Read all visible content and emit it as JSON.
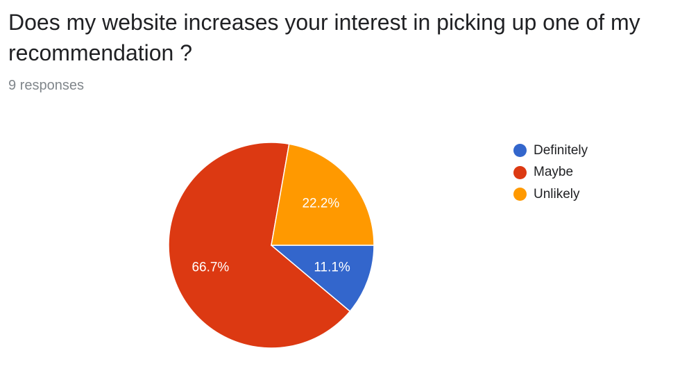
{
  "question": {
    "title": "Does my website increases your interest in picking up one of my recommendation ?",
    "responses": "9 responses"
  },
  "colors": {
    "definitely": "#3366cc",
    "maybe": "#dc3912",
    "unlikely": "#ff9900"
  },
  "chart_data": {
    "type": "pie",
    "title": "Does my website increases your interest in picking up one of my recommendation ?",
    "legend_position": "right",
    "slices": [
      {
        "label": "Definitely",
        "value": 1,
        "percent": "11.1%",
        "color": "#3366cc"
      },
      {
        "label": "Maybe",
        "value": 6,
        "percent": "66.7%",
        "color": "#dc3912"
      },
      {
        "label": "Unlikely",
        "value": 2,
        "percent": "22.2%",
        "color": "#ff9900"
      }
    ]
  }
}
